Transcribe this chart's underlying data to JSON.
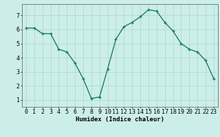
{
  "x": [
    0,
    1,
    2,
    3,
    4,
    5,
    6,
    7,
    8,
    9,
    10,
    11,
    12,
    13,
    14,
    15,
    16,
    17,
    18,
    19,
    20,
    21,
    22,
    23
  ],
  "y": [
    6.1,
    6.1,
    5.7,
    5.7,
    4.6,
    4.4,
    3.6,
    2.5,
    1.1,
    1.2,
    3.2,
    5.3,
    6.2,
    6.5,
    6.9,
    7.4,
    7.3,
    6.5,
    5.9,
    5.0,
    4.6,
    4.4,
    3.8,
    2.5
  ],
  "line_color": "#1a7a6e",
  "marker": "+",
  "markersize": 3.5,
  "linewidth": 1.0,
  "bg_color": "#cceee8",
  "grid_color": "#b0d8d2",
  "xlabel": "Humidex (Indice chaleur)",
  "xlabel_fontsize": 6.5,
  "ylabel_ticks": [
    1,
    2,
    3,
    4,
    5,
    6,
    7
  ],
  "xlim": [
    -0.5,
    23.5
  ],
  "ylim": [
    0.5,
    7.8
  ],
  "tick_fontsize": 6.0
}
